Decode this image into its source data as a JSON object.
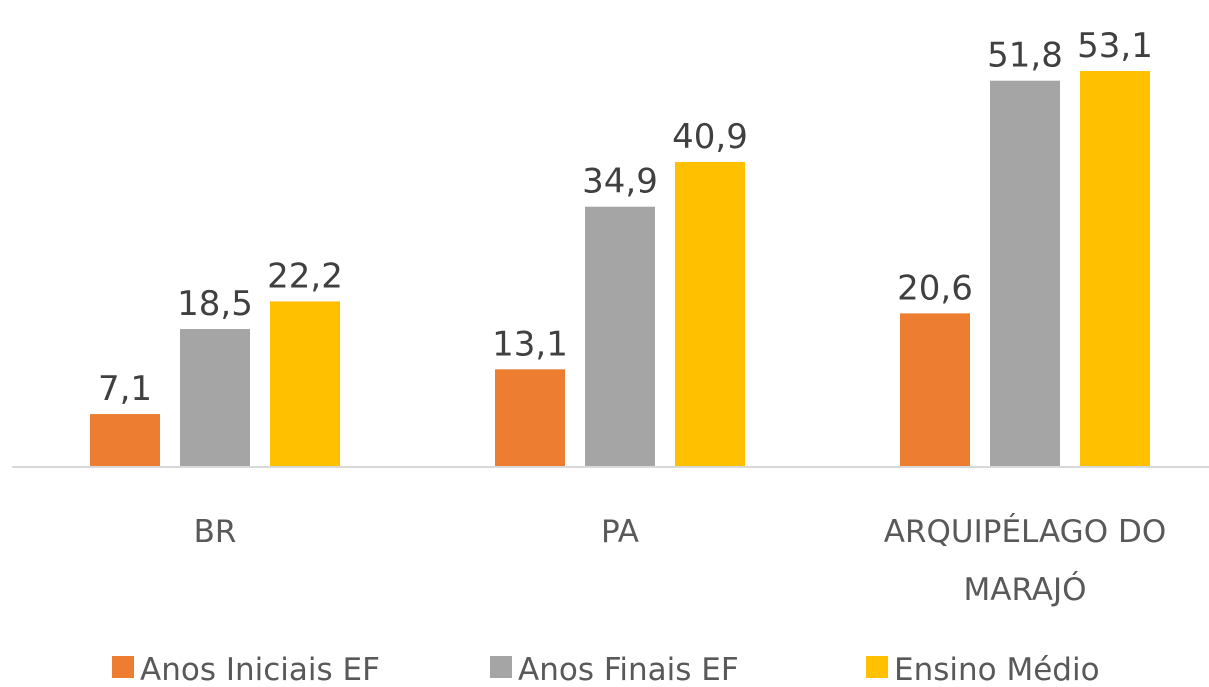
{
  "chart_data": {
    "type": "bar",
    "categories": [
      "BR",
      "PA",
      "ARQUIPÉLAGO DO MARAJÓ"
    ],
    "series": [
      {
        "name": "Anos Iniciais EF",
        "color": "#ED7D31",
        "values": [
          7.1,
          13.1,
          20.6
        ],
        "value_labels": [
          "7,1",
          "13,1",
          "20,6"
        ]
      },
      {
        "name": "Anos Finais EF",
        "color": "#A5A5A5",
        "values": [
          18.5,
          34.9,
          51.8
        ],
        "value_labels": [
          "18,5",
          "34,9",
          "51,8"
        ]
      },
      {
        "name": "Ensino Médio",
        "color": "#FFC000",
        "values": [
          22.2,
          40.9,
          53.1
        ],
        "value_labels": [
          "22,2",
          "40,9",
          "53,1"
        ]
      }
    ],
    "legend": "bottom"
  }
}
